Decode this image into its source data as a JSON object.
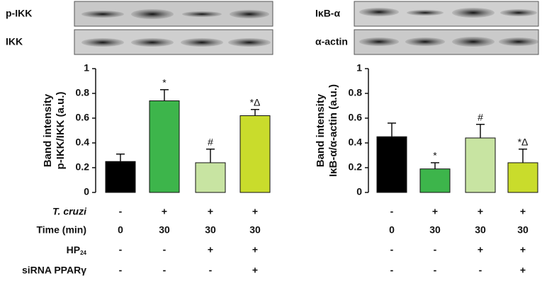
{
  "blots": {
    "left": [
      "p-IKK",
      "IKK"
    ],
    "right": [
      "IκB-α",
      "α-actin"
    ]
  },
  "chart_data": [
    {
      "type": "bar",
      "y_label": [
        "Band intensity",
        "p-IKK/IKK (a.u.)"
      ],
      "values": [
        0.25,
        0.74,
        0.24,
        0.62
      ],
      "errors": [
        0.06,
        0.09,
        0.11,
        0.05
      ],
      "annotations": [
        null,
        "*",
        "#",
        "*Δ"
      ],
      "colors": [
        "#000000",
        "#3db54b",
        "#c8e4a2",
        "#c9dc2c"
      ],
      "ylim": [
        0,
        1
      ],
      "yticks": [
        0,
        0.2,
        0.4,
        0.6,
        0.8,
        1
      ]
    },
    {
      "type": "bar",
      "y_label": [
        "Band intensity",
        "IκB-α/α-actin (a.u.)"
      ],
      "values": [
        0.45,
        0.19,
        0.44,
        0.24
      ],
      "errors": [
        0.11,
        0.05,
        0.11,
        0.11
      ],
      "annotations": [
        null,
        "*",
        "#",
        "*Δ"
      ],
      "colors": [
        "#000000",
        "#3db54b",
        "#c8e4a2",
        "#c9dc2c"
      ],
      "ylim": [
        0,
        1
      ],
      "yticks": [
        0,
        0.2,
        0.4,
        0.6,
        0.8,
        1
      ]
    }
  ],
  "conditions": [
    {
      "label": "T. cruzi",
      "values": [
        "-",
        "+",
        "+",
        "+"
      ]
    },
    {
      "label": "Time (min)",
      "values": [
        "0",
        "30",
        "30",
        "30"
      ]
    },
    {
      "label": {
        "text": "HP",
        "sub": "24"
      },
      "values": [
        "-",
        "-",
        "+",
        "+"
      ]
    },
    {
      "label": "siRNA PPARγ",
      "values": [
        "-",
        "-",
        "-",
        "+"
      ]
    }
  ]
}
